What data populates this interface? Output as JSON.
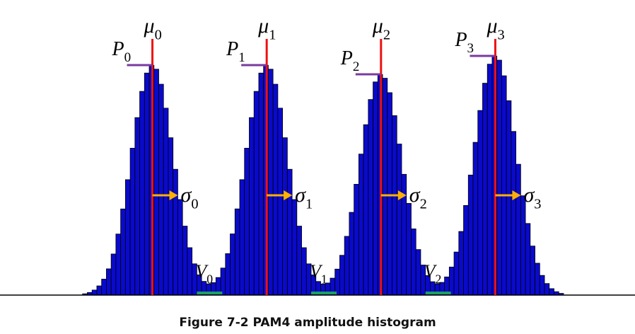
{
  "caption": "Figure 7-2 PAM4 amplitude histogram",
  "chart_data": {
    "type": "histogram",
    "title": "Figure 7-2 PAM4 amplitude histogram",
    "xlabel": "",
    "ylabel": "",
    "xlim": [
      0,
      100
    ],
    "ylim": [
      0,
      100
    ],
    "peaks": [
      {
        "name": "0",
        "mu": 24,
        "sigma": 3.3,
        "P": 100,
        "mean_label": {
          "sym": "μ",
          "sub": "0"
        },
        "P_label": {
          "sym": "P",
          "sub": "0"
        },
        "sigma_label": {
          "sym": "σ",
          "sub": "0"
        }
      },
      {
        "name": "1",
        "mu": 42,
        "sigma": 3.3,
        "P": 100,
        "mean_label": {
          "sym": "μ",
          "sub": "1"
        },
        "P_label": {
          "sym": "P",
          "sub": "1"
        },
        "sigma_label": {
          "sym": "σ",
          "sub": "1"
        }
      },
      {
        "name": "2",
        "mu": 60,
        "sigma": 3.3,
        "P": 96,
        "mean_label": {
          "sym": "μ",
          "sub": "2"
        },
        "P_label": {
          "sym": "P",
          "sub": "2"
        },
        "sigma_label": {
          "sym": "σ",
          "sub": "2"
        }
      },
      {
        "name": "3",
        "mu": 78,
        "sigma": 3.3,
        "P": 104,
        "mean_label": {
          "sym": "μ",
          "sub": "3"
        },
        "P_label": {
          "sym": "P",
          "sub": "3"
        },
        "sigma_label": {
          "sym": "σ",
          "sub": "3"
        }
      }
    ],
    "valleys": [
      {
        "name": "0",
        "x": 33,
        "V": 1.5,
        "label": {
          "sym": "V",
          "sub": "0"
        }
      },
      {
        "name": "1",
        "x": 51,
        "V": 1.5,
        "label": {
          "sym": "V",
          "sub": "1"
        }
      },
      {
        "name": "2",
        "x": 69,
        "V": 1.5,
        "label": {
          "sym": "V",
          "sub": "2"
        }
      }
    ],
    "colors": {
      "bars": "#0a0acc",
      "bar_edge": "#000000",
      "mean_line": "#ee1111",
      "peak_marker": "#7a3aa0",
      "sigma_arrow": "#ffb000",
      "valley_marker": "#1aa060",
      "axis": "#000000"
    }
  }
}
